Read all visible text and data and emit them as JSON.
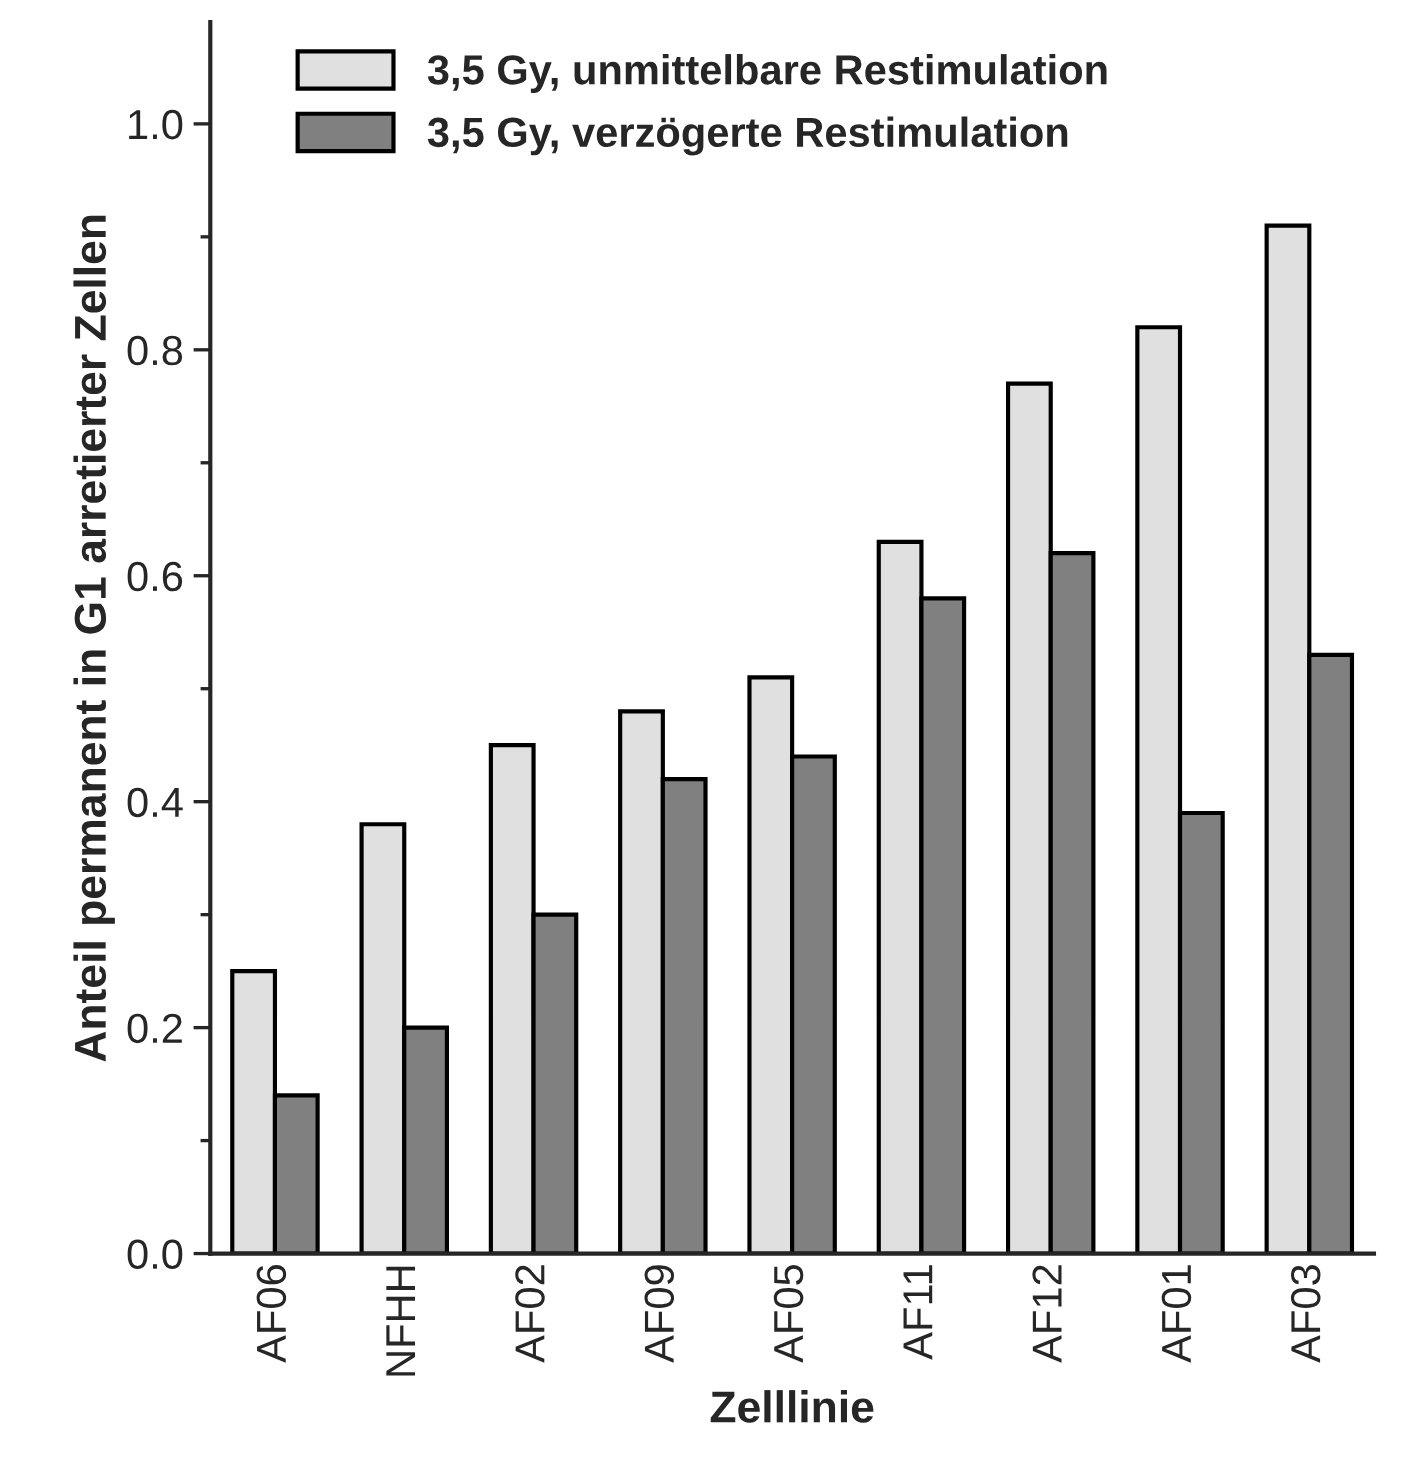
{
  "chart_data": {
    "type": "bar",
    "xlabel": "Zelllinie",
    "ylabel": "Anteil permanent in G1 arretierter Zellen",
    "categories": [
      "AF06",
      "NFHH",
      "AF02",
      "AF09",
      "AF05",
      "AF11",
      "AF12",
      "AF01",
      "AF03"
    ],
    "series": [
      {
        "name": "3,5 Gy, unmittelbare Restimulation",
        "color": "#e0e0e0",
        "values": [
          0.25,
          0.38,
          0.45,
          0.48,
          0.51,
          0.63,
          0.77,
          0.82,
          0.91
        ]
      },
      {
        "name": "3,5 Gy, verzögerte Restimulation",
        "color": "#808080",
        "values": [
          0.14,
          0.2,
          0.3,
          0.42,
          0.44,
          0.58,
          0.62,
          0.39,
          0.53
        ]
      }
    ],
    "ylim": [
      0,
      1.09
    ],
    "yticks": [
      {
        "value": 0,
        "label": "0.0"
      },
      {
        "value": 0.1,
        "label": null
      },
      0.2,
      {
        "value": 0.3,
        "label": null
      },
      0.4,
      {
        "value": 0.5,
        "label": null
      },
      0.6,
      {
        "value": 0.7,
        "label": null
      },
      0.8,
      {
        "value": 0.9,
        "label": null
      },
      {
        "value": 1,
        "label": "1.0"
      }
    ],
    "legend": "top left",
    "grid": false
  }
}
